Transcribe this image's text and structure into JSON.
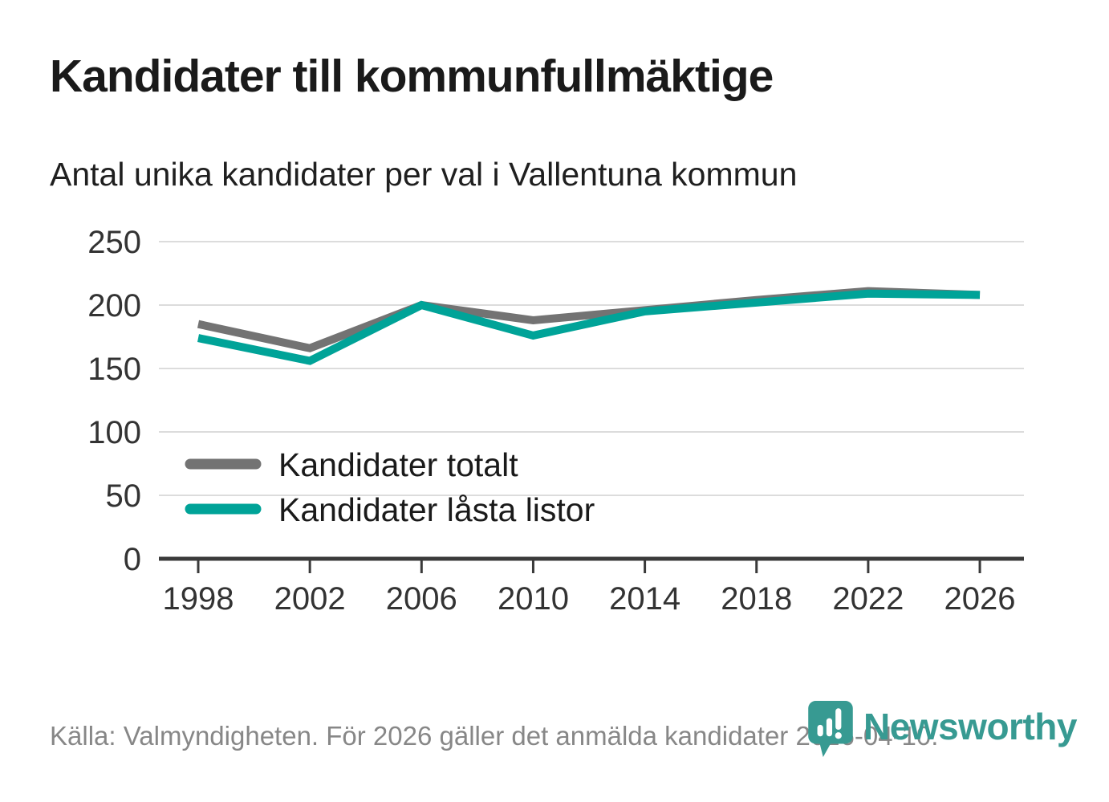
{
  "header": {
    "title": "Kandidater till kommunfullmäktige",
    "subtitle": "Antal unika kandidater per val i Vallentuna kommun"
  },
  "chart_data": {
    "type": "line",
    "x": [
      1998,
      2002,
      2006,
      2010,
      2014,
      2018,
      2022,
      2026
    ],
    "series": [
      {
        "name": "Kandidater totalt",
        "color": "#737373",
        "values": [
          185,
          166,
          200,
          188,
          196,
          204,
          211,
          208
        ]
      },
      {
        "name": "Kandidater låsta listor",
        "color": "#00a398",
        "values": [
          174,
          156,
          200,
          176,
          195,
          202,
          209,
          208
        ]
      }
    ],
    "title": "Kandidater till kommunfullmäktige",
    "subtitle": "Antal unika kandidater per val i Vallentuna kommun",
    "xlabel": "",
    "ylabel": "",
    "ylim": [
      0,
      250
    ],
    "yticks": [
      0,
      50,
      100,
      150,
      200,
      250
    ],
    "grid": "horizontal",
    "legend_position": "inside-left-middle"
  },
  "legend": {
    "items": [
      {
        "label": "Kandidater totalt",
        "swatch": "gray-line-swatch"
      },
      {
        "label": "Kandidater låsta listor",
        "swatch": "teal-line-swatch"
      }
    ]
  },
  "footer": {
    "source": "Källa: Valmyndigheten. För 2026 gäller det anmälda kandidater 2026-04-10.",
    "brand": "Newsworthy"
  },
  "colors": {
    "series_total": "#737373",
    "series_locked_lists": "#00a398",
    "brand_teal": "#379a92",
    "grid": "#dcdcdc",
    "axis": "#3a3a3a",
    "axis_text": "#333333",
    "title_text": "#1a1a1a",
    "footer_text": "#878787",
    "background": "#ffffff"
  }
}
